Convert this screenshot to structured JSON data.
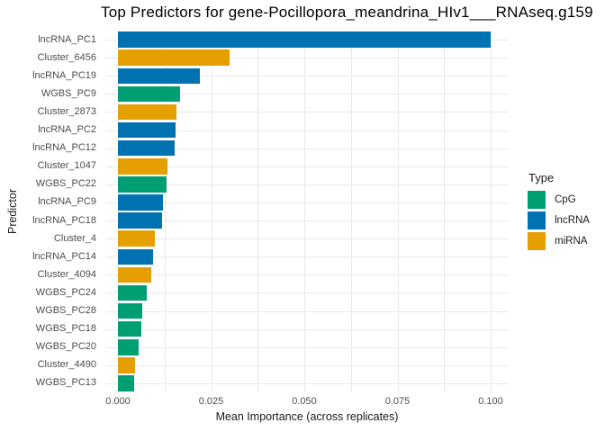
{
  "title": "Top Predictors for gene-Pocillopora_meandrina_HIv1___RNAseq.g159",
  "chart_data": {
    "type": "bar",
    "orientation": "horizontal",
    "title": "Top Predictors for gene-Pocillopora_meandrina_HIv1___RNAseq.g159",
    "xlabel": "Mean Importance (across replicates)",
    "ylabel": "Predictor",
    "xlim": [
      0,
      0.105
    ],
    "x_tick_values": [
      0,
      0.025,
      0.05,
      0.075,
      0.1
    ],
    "x_tick_labels": [
      "0.000",
      "0.025",
      "0.050",
      "0.075",
      "0.100"
    ],
    "x_minor_step": 0.0125,
    "grid": true,
    "categories": [
      "lncRNA_PC1",
      "Cluster_6456",
      "lncRNA_PC19",
      "WGBS_PC9",
      "Cluster_2873",
      "lncRNA_PC2",
      "lncRNA_PC12",
      "Cluster_1047",
      "WGBS_PC22",
      "lncRNA_PC9",
      "lncRNA_PC18",
      "Cluster_4",
      "lncRNA_PC14",
      "Cluster_4094",
      "WGBS_PC24",
      "WGBS_PC28",
      "WGBS_PC18",
      "WGBS_PC20",
      "Cluster_4490",
      "WGBS_PC13"
    ],
    "values": [
      0.1,
      0.03,
      0.0221,
      0.0167,
      0.0157,
      0.0154,
      0.0151,
      0.0134,
      0.0131,
      0.012,
      0.0119,
      0.01,
      0.0095,
      0.009,
      0.0078,
      0.0065,
      0.0064,
      0.0055,
      0.0046,
      0.0044
    ],
    "types": [
      "lncRNA",
      "miRNA",
      "lncRNA",
      "CpG",
      "miRNA",
      "lncRNA",
      "lncRNA",
      "miRNA",
      "CpG",
      "lncRNA",
      "lncRNA",
      "miRNA",
      "lncRNA",
      "miRNA",
      "CpG",
      "CpG",
      "CpG",
      "CpG",
      "miRNA",
      "CpG"
    ],
    "colors": {
      "CpG": "#009E73",
      "lncRNA": "#0072B2",
      "miRNA": "#E69F00"
    },
    "legend": {
      "title": "Type",
      "position": "right",
      "entries": [
        {
          "label": "CpG",
          "color": "#009E73"
        },
        {
          "label": "lncRNA",
          "color": "#0072B2"
        },
        {
          "label": "miRNA",
          "color": "#E69F00"
        }
      ]
    },
    "gridline_color": "#E8E8E8",
    "background": "#FFFFFF",
    "axis_text_color": "#4D4D4D"
  }
}
